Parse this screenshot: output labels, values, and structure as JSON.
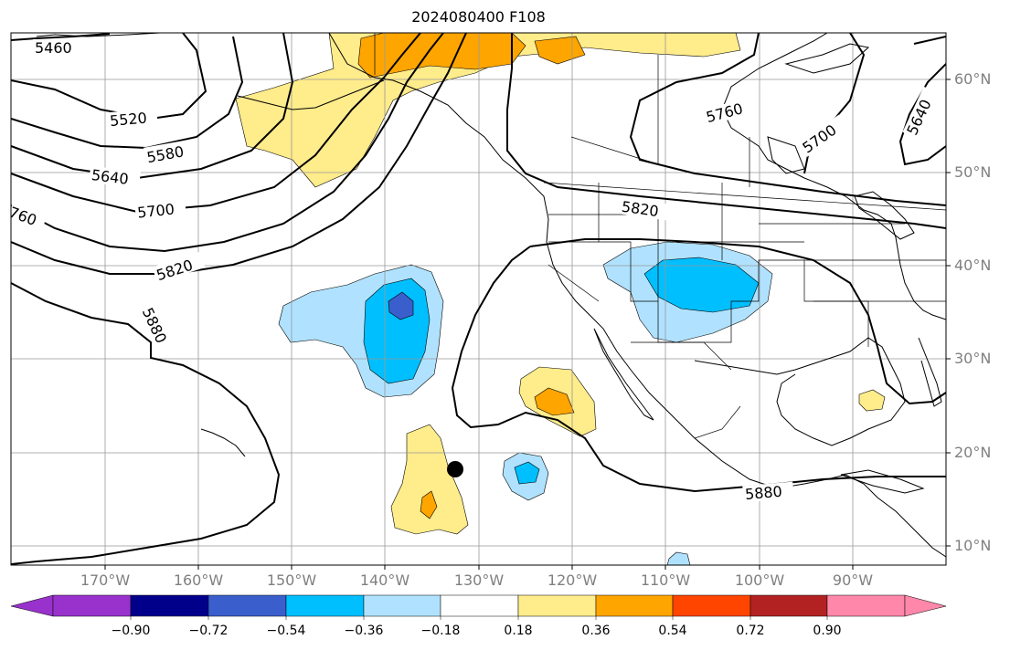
{
  "title": "2024080400 F108",
  "lat_labels": [
    "60°N",
    "50°N",
    "40°N",
    "30°N",
    "20°N",
    "10°N"
  ],
  "lon_labels": [
    "170°W",
    "160°W",
    "150°W",
    "140°W",
    "130°W",
    "120°W",
    "110°W",
    "100°W",
    "90°W"
  ],
  "contour_labels": [
    "5460",
    "5520",
    "5580",
    "5640",
    "5700",
    "760",
    "5820",
    "5880",
    "5820",
    "5760",
    "5700",
    "5640",
    "5880"
  ],
  "colorbar": {
    "ticks": [
      "−0.90",
      "−0.72",
      "−0.54",
      "−0.36",
      "−0.18",
      "0.18",
      "0.36",
      "0.54",
      "0.72",
      "0.90"
    ],
    "colors": [
      "#9932cc",
      "#00008b",
      "#3a5fcd",
      "#00bfff",
      "#b0e2ff",
      "#ffffff",
      "#ffec8b",
      "#ffa500",
      "#ff4500",
      "#b22222",
      "#ff88aa"
    ]
  },
  "marker": "storm-center-dot"
}
